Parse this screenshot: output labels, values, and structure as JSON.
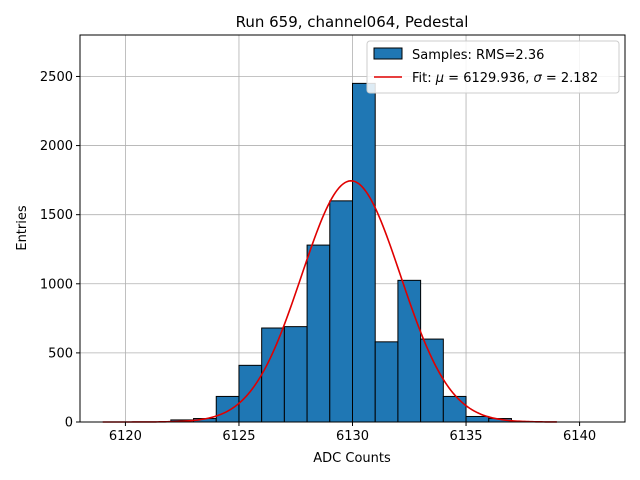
{
  "chart_data": {
    "type": "bar",
    "title": "Run 659, channel064, Pedestal",
    "xlabel": "ADC Counts",
    "ylabel": "Entries",
    "xlim": [
      6118,
      6142
    ],
    "ylim": [
      0,
      2800
    ],
    "xticks": [
      6120,
      6125,
      6130,
      6135,
      6140
    ],
    "yticks": [
      0,
      500,
      1000,
      1500,
      2000,
      2500
    ],
    "grid": true,
    "legend_position": "top-right",
    "bin_width": 1,
    "bins": [
      {
        "x": 6122,
        "count": 15
      },
      {
        "x": 6123,
        "count": 25
      },
      {
        "x": 6124,
        "count": 185
      },
      {
        "x": 6125,
        "count": 410
      },
      {
        "x": 6126,
        "count": 680
      },
      {
        "x": 6127,
        "count": 690
      },
      {
        "x": 6128,
        "count": 1280
      },
      {
        "x": 6129,
        "count": 1600
      },
      {
        "x": 6130,
        "count": 2450
      },
      {
        "x": 6131,
        "count": 580
      },
      {
        "x": 6132,
        "count": 1025
      },
      {
        "x": 6133,
        "count": 600
      },
      {
        "x": 6134,
        "count": 185
      },
      {
        "x": 6135,
        "count": 40
      },
      {
        "x": 6136,
        "count": 25
      }
    ],
    "fit": {
      "mu": 6129.936,
      "sigma": 2.182,
      "amplitude": 1745,
      "x_range": [
        6119,
        6139
      ]
    },
    "series": [
      {
        "name": "Samples: RMS=2.36",
        "color": "#1f77b4"
      },
      {
        "name": "Fit: μ = 6129.936, σ = 2.182",
        "color": "#e00000"
      }
    ],
    "legend": {
      "samples_label": "Samples: RMS=2.36",
      "fit_prefix": "Fit: ",
      "fit_mu_symbol": "μ",
      "fit_mu_text": " = 6129.936, ",
      "fit_sigma_symbol": "σ",
      "fit_sigma_text": " = 2.182"
    },
    "colors": {
      "bar_fill": "#1f77b4",
      "bar_edge": "#000000",
      "fit_line": "#e00000",
      "grid": "#b0b0b0"
    }
  }
}
